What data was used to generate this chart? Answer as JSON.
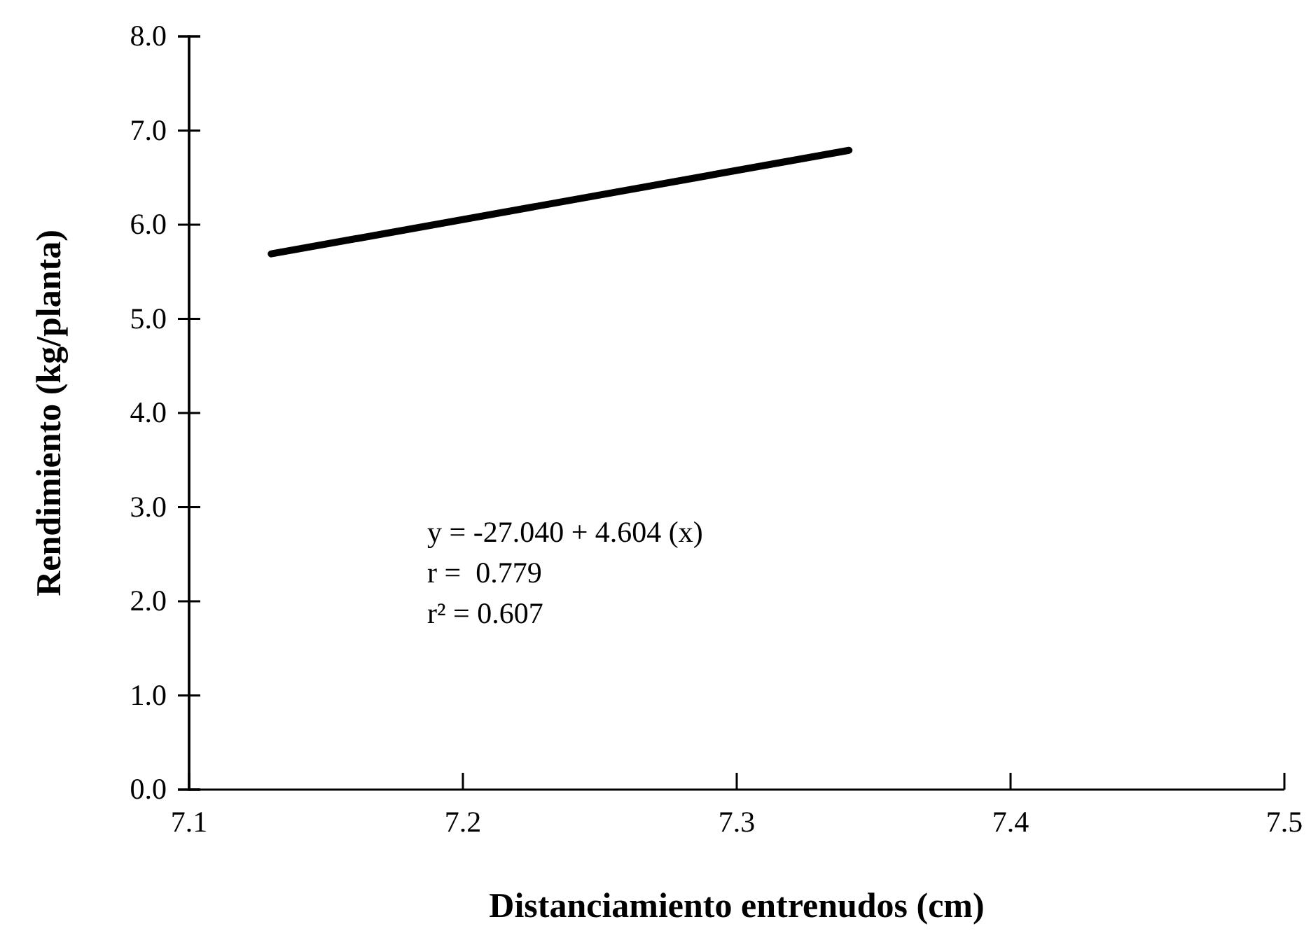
{
  "chart_data": {
    "type": "line",
    "xlabel": "Distanciamiento entrenudos (cm)",
    "ylabel": "Rendimiento (kg/planta)",
    "x": [
      7.13,
      7.341
    ],
    "series": [
      {
        "color": "#000000",
        "values": [
          5.69,
          6.79
        ]
      }
    ],
    "xlim": [
      7.1,
      7.5
    ],
    "ylim": [
      0,
      8
    ],
    "xticks": [
      7.1,
      7.2,
      7.3,
      7.4,
      7.5
    ],
    "yticks": [
      {
        "value": 0,
        "label": "0.0"
      },
      {
        "value": 1,
        "label": "1.0"
      },
      {
        "value": 2,
        "label": "2.0"
      },
      {
        "value": 3,
        "label": "3.0"
      },
      {
        "value": 4,
        "label": "4.0"
      },
      {
        "value": 5,
        "label": "5.0"
      },
      {
        "value": 6,
        "label": "6.0"
      },
      {
        "value": 7,
        "label": "7.0"
      },
      {
        "value": 8,
        "label": "8.0"
      }
    ],
    "annotations": [
      "y = -27.040 + 4.604 (x)",
      "r =  0.779",
      "r² = 0.607"
    ],
    "grid": false,
    "marker": "none",
    "line_style": "solid"
  }
}
